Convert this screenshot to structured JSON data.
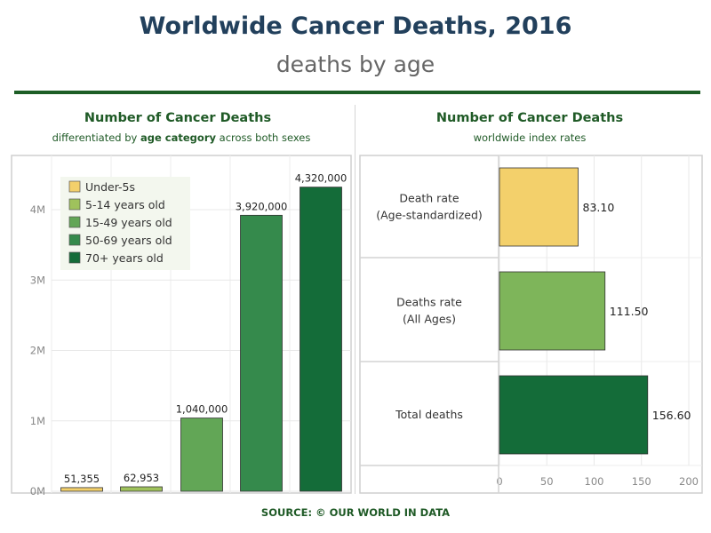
{
  "header": {
    "title": "Worldwide Cancer Deaths, 2016",
    "subtitle": "deaths by age"
  },
  "left_panel": {
    "title": "Number of Cancer Deaths",
    "subtitle_pre": "differentiated by ",
    "subtitle_bold": "age category",
    "subtitle_post": " across both sexes"
  },
  "right_panel": {
    "title": "Number of Cancer Deaths",
    "subtitle": "worldwide index rates"
  },
  "source": "SOURCE: © OUR WORLD IN DATA",
  "colors": {
    "under5": "#f3d06b",
    "age5_14": "#9fc25c",
    "age15_49": "#62a656",
    "age50_69": "#358a4c",
    "age70": "#146c39",
    "deathrate_std": "#f3d06b",
    "deathrate_all": "#7eb55a",
    "total": "#146c39",
    "accent": "#1d5e26"
  },
  "chart_data": [
    {
      "type": "bar",
      "categories": [
        "Under-5s",
        "5-14 years old",
        "15-49 years old",
        "50-69 years old",
        "70+ years old"
      ],
      "values": [
        51355,
        62953,
        1040000,
        3920000,
        4320000
      ],
      "value_labels": [
        "51,355",
        "62,953",
        "1,040,000",
        "3,920,000",
        "4,320,000"
      ],
      "legend": [
        "Under-5s",
        "5-14 years old",
        "15-49 years old",
        "50-69 years old",
        "70+ years old"
      ],
      "legend_position": "top-left",
      "yticks": [
        0,
        1000000,
        2000000,
        3000000,
        4000000
      ],
      "ytick_labels": [
        "0M",
        "1M",
        "2M",
        "3M",
        "4M"
      ],
      "ylim": [
        0,
        4500000
      ],
      "grid": true
    },
    {
      "type": "bar",
      "orientation": "horizontal",
      "categories": [
        [
          "Death rate",
          "(Age-standardized)"
        ],
        [
          "Deaths rate",
          "(All Ages)"
        ],
        [
          "Total deaths"
        ]
      ],
      "values": [
        83.1,
        111.5,
        156.6
      ],
      "value_labels": [
        "83.10",
        "111.50",
        "156.60"
      ],
      "xticks": [
        0,
        50,
        100,
        150,
        200
      ],
      "xtick_labels": [
        "0",
        "50",
        "100",
        "150",
        "200"
      ],
      "xlim": [
        0,
        200
      ],
      "grid": true
    }
  ]
}
